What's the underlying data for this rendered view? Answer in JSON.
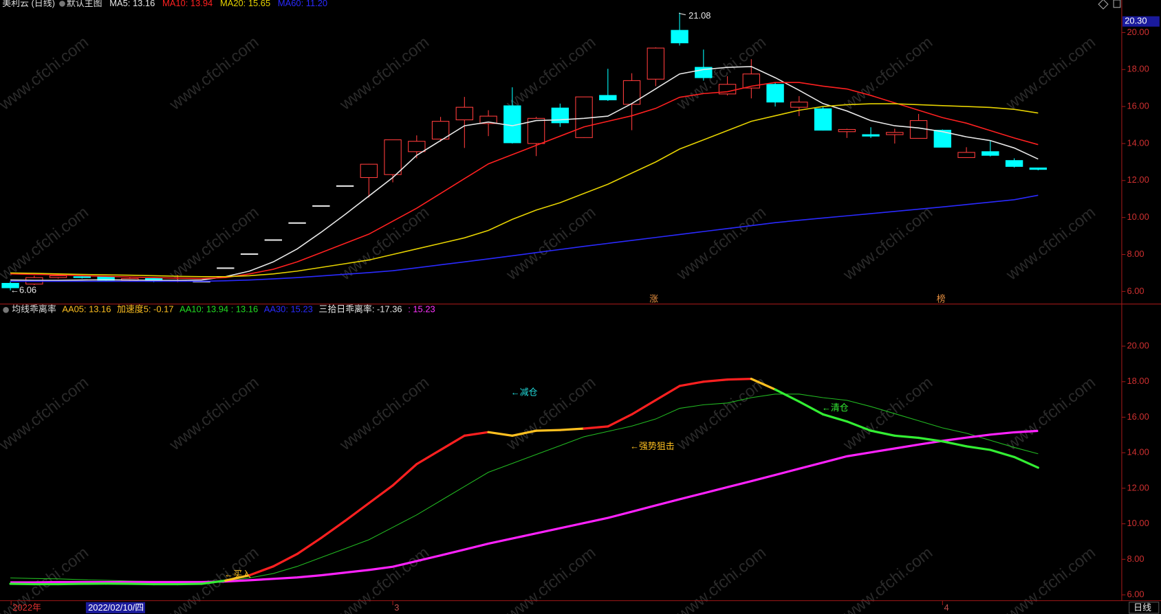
{
  "chart_data": [
    {
      "type": "candlestick",
      "title": "美利云 (日线)",
      "subtitle": "默认主图",
      "categories": [
        "2022年",
        null,
        null,
        null,
        null,
        null,
        null,
        null,
        null,
        null,
        null,
        null,
        null,
        null,
        null,
        null,
        "3",
        null,
        null,
        null,
        null,
        null,
        null,
        null,
        null,
        null,
        null,
        null,
        null,
        null,
        null,
        null,
        null,
        null,
        null,
        null,
        null,
        null,
        null,
        "4",
        null,
        null,
        null,
        null
      ],
      "open": [
        6.44,
        6.4,
        6.75,
        6.8,
        6.8,
        6.6,
        6.7,
        6.55,
        6.55,
        7.28,
        8.04,
        8.8,
        9.72,
        10.64,
        11.72,
        12.16,
        12.32,
        13.56,
        14.24,
        15.28,
        15.08,
        16.04,
        14.0,
        15.92,
        14.32,
        16.6,
        16.12,
        17.48,
        20.12,
        18.12,
        16.68,
        17.0,
        17.2,
        15.96,
        15.88,
        14.64,
        14.48,
        14.48,
        14.28,
        14.72,
        13.24,
        13.56,
        13.08,
        12.68
      ],
      "high": [
        6.55,
        6.85,
        6.9,
        6.85,
        6.85,
        6.75,
        6.75,
        6.9,
        6.55,
        7.28,
        8.04,
        8.8,
        9.72,
        10.64,
        11.72,
        12.9,
        14.2,
        14.44,
        15.44,
        16.52,
        15.8,
        17.04,
        15.44,
        16.16,
        16.52,
        18.04,
        17.8,
        19.2,
        21.08,
        19.08,
        17.64,
        18.56,
        17.3,
        16.56,
        16.0,
        14.8,
        14.88,
        14.8,
        15.6,
        14.76,
        13.8,
        14.16,
        13.2,
        12.7
      ],
      "low": [
        6.06,
        6.35,
        6.7,
        6.7,
        6.55,
        6.55,
        6.5,
        6.5,
        6.55,
        7.28,
        8.04,
        8.8,
        9.72,
        10.64,
        11.72,
        11.08,
        11.9,
        13.2,
        14.1,
        13.76,
        14.4,
        14.0,
        13.32,
        14.9,
        14.3,
        16.3,
        14.72,
        17.1,
        19.3,
        17.4,
        16.6,
        16.44,
        16.0,
        15.48,
        14.7,
        14.3,
        14.3,
        14.0,
        14.28,
        13.8,
        13.24,
        13.3,
        12.7,
        12.55
      ],
      "close": [
        6.2,
        6.75,
        6.85,
        6.75,
        6.6,
        6.7,
        6.55,
        6.6,
        6.55,
        7.28,
        8.04,
        8.8,
        9.72,
        10.64,
        11.72,
        12.88,
        14.2,
        14.12,
        15.2,
        15.96,
        15.48,
        14.04,
        15.36,
        15.12,
        16.52,
        16.36,
        17.4,
        19.16,
        19.44,
        17.56,
        17.2,
        17.76,
        16.24,
        16.24,
        14.72,
        14.76,
        14.4,
        14.6,
        15.24,
        13.8,
        13.52,
        13.36,
        12.76,
        12.6
      ],
      "up_color": "#ff3c3c",
      "down_color": "#00ffff",
      "flat_color": "#e0e0e0",
      "series": [
        {
          "name": "MA5: 13.16",
          "color": "#e8e8e8",
          "values": [
            6.62,
            6.6,
            6.6,
            6.62,
            6.63,
            6.62,
            6.6,
            6.6,
            6.62,
            6.8,
            7.1,
            7.6,
            8.3,
            9.2,
            10.16,
            11.16,
            12.16,
            13.36,
            14.16,
            14.96,
            15.16,
            14.96,
            15.24,
            15.28,
            15.36,
            15.48,
            16.16,
            16.96,
            17.76,
            18.0,
            18.12,
            18.16,
            17.56,
            16.88,
            16.16,
            15.76,
            15.24,
            14.96,
            14.84,
            14.64,
            14.36,
            14.16,
            13.76,
            13.16
          ]
        },
        {
          "name": "MA10: 13.94",
          "color": "#ff2020",
          "values": [
            6.95,
            6.92,
            6.9,
            6.85,
            6.82,
            6.78,
            6.75,
            6.72,
            6.7,
            6.75,
            6.95,
            7.2,
            7.6,
            8.1,
            8.6,
            9.1,
            9.8,
            10.5,
            11.3,
            12.1,
            12.9,
            13.4,
            13.9,
            14.4,
            14.9,
            15.2,
            15.5,
            15.9,
            16.5,
            16.7,
            16.8,
            17.1,
            17.3,
            17.3,
            17.1,
            16.95,
            16.6,
            16.2,
            15.8,
            15.4,
            15.1,
            14.7,
            14.3,
            13.94
          ]
        },
        {
          "name": "MA20: 15.65",
          "color": "#e6d200",
          "values": [
            7.0,
            6.98,
            6.95,
            6.92,
            6.9,
            6.88,
            6.85,
            6.82,
            6.8,
            6.8,
            6.85,
            6.95,
            7.1,
            7.3,
            7.5,
            7.7,
            8.0,
            8.3,
            8.6,
            8.9,
            9.3,
            9.9,
            10.4,
            10.8,
            11.3,
            11.8,
            12.4,
            13.0,
            13.7,
            14.2,
            14.7,
            15.2,
            15.5,
            15.8,
            16.0,
            16.1,
            16.15,
            16.15,
            16.1,
            16.05,
            16.0,
            15.95,
            15.85,
            15.65
          ]
        },
        {
          "name": "MA60: 11.20",
          "color": "#2a2aff",
          "values": [
            6.55,
            6.55,
            6.55,
            6.55,
            6.55,
            6.55,
            6.55,
            6.55,
            6.55,
            6.58,
            6.62,
            6.68,
            6.75,
            6.84,
            6.93,
            7.02,
            7.12,
            7.28,
            7.44,
            7.6,
            7.76,
            7.93,
            8.1,
            8.27,
            8.44,
            8.6,
            8.76,
            8.92,
            9.08,
            9.24,
            9.4,
            9.56,
            9.72,
            9.85,
            9.97,
            10.09,
            10.21,
            10.33,
            10.45,
            10.57,
            10.7,
            10.83,
            10.96,
            11.2
          ]
        }
      ],
      "ylim": [
        5.36,
        21.28
      ],
      "yticks": [
        {
          "value": 6,
          "label": "6.00"
        },
        {
          "value": 8,
          "label": "8.00"
        },
        {
          "value": 10,
          "label": "10.00"
        },
        {
          "value": 12,
          "label": "12.00"
        },
        {
          "value": 14,
          "label": "14.00"
        },
        {
          "value": 16,
          "label": "16.00"
        },
        {
          "value": 18,
          "label": "18.00"
        },
        {
          "value": 20,
          "label": "20.00"
        }
      ],
      "annotations": [
        "←6.06",
        "21.08",
        "涨",
        "榜"
      ],
      "price_label": "20.30"
    },
    {
      "type": "line",
      "title": "均线乖离率",
      "legend": [
        {
          "text": "AA05: 13.16",
          "color": "#ffc020"
        },
        {
          "text": "加速度5: -0.17",
          "color": "#ffc020"
        },
        {
          "text": "AA10: 13.94 : 13.16",
          "color": "#22dd22"
        },
        {
          "text": "AA30: 15.23",
          "color": "#2a2aff"
        },
        {
          "text": "三拾日乖离率: -17.36",
          "color": "#e8e8e8"
        },
        {
          "text": ": 15.23",
          "color": "#ff33ff"
        }
      ],
      "series": [
        {
          "color": "#22bb22",
          "width": 1,
          "values": [
            6.95,
            6.92,
            6.9,
            6.85,
            6.82,
            6.78,
            6.75,
            6.72,
            6.7,
            6.75,
            6.95,
            7.2,
            7.6,
            8.1,
            8.6,
            9.1,
            9.8,
            10.5,
            11.3,
            12.1,
            12.9,
            13.4,
            13.9,
            14.4,
            14.9,
            15.2,
            15.5,
            15.9,
            16.5,
            16.7,
            16.8,
            17.1,
            17.3,
            17.3,
            17.1,
            16.95,
            16.6,
            16.2,
            15.8,
            15.4,
            15.1,
            14.7,
            14.3,
            13.94
          ]
        },
        {
          "color": "#ff22ff",
          "width": 3,
          "values": [
            6.7,
            6.7,
            6.72,
            6.72,
            6.72,
            6.72,
            6.72,
            6.72,
            6.72,
            6.75,
            6.82,
            6.9,
            6.98,
            7.1,
            7.25,
            7.4,
            7.58,
            7.9,
            8.22,
            8.55,
            8.88,
            9.17,
            9.46,
            9.75,
            10.04,
            10.33,
            10.68,
            11.03,
            11.38,
            11.72,
            12.06,
            12.4,
            12.75,
            13.1,
            13.45,
            13.8,
            14.02,
            14.24,
            14.46,
            14.67,
            14.85,
            15.02,
            15.15,
            15.23
          ]
        },
        {
          "width": 3,
          "values": [
            6.62,
            6.6,
            6.6,
            6.62,
            6.63,
            6.62,
            6.6,
            6.6,
            6.62,
            6.8,
            7.1,
            7.6,
            8.3,
            9.2,
            10.16,
            11.16,
            12.16,
            13.36,
            14.16,
            14.96,
            15.16,
            14.96,
            15.24,
            15.28,
            15.36,
            15.48,
            16.16,
            16.96,
            17.76,
            18.0,
            18.12,
            18.16,
            17.56,
            16.88,
            16.16,
            15.76,
            15.24,
            14.96,
            14.84,
            14.64,
            14.36,
            14.16,
            13.76,
            13.16
          ],
          "segment_colors": [
            "#33ee33",
            "#33ee33",
            "#33ee33",
            "#33ee33",
            "#33ee33",
            "#33ee33",
            "#33ee33",
            "#33ee33",
            "#33ee33",
            "#ffc020",
            "#ff2020",
            "#ff2020",
            "#ff2020",
            "#ff2020",
            "#ff2020",
            "#ff2020",
            "#ff2020",
            "#ff2020",
            "#ff2020",
            "#ff2020",
            "#ffc020",
            "#ffc020",
            "#ffc020",
            "#ffc020",
            "#ff2020",
            "#ff2020",
            "#ff2020",
            "#ff2020",
            "#ff2020",
            "#ff2020",
            "#ff2020",
            "#ffc020",
            "#33ee33",
            "#33ee33",
            "#33ee33",
            "#33ee33",
            "#33ee33",
            "#33ee33",
            "#33ee33",
            "#33ee33",
            "#33ee33",
            "#33ee33",
            "#33ee33"
          ]
        }
      ],
      "ylim": [
        5.67,
        22.33
      ],
      "yticks": [
        {
          "value": 6,
          "label": "6.00"
        },
        {
          "value": 8,
          "label": "8.00"
        },
        {
          "value": 10,
          "label": "10.00"
        },
        {
          "value": 12,
          "label": "12.00"
        },
        {
          "value": 14,
          "label": "14.00"
        },
        {
          "value": 16,
          "label": "16.00"
        },
        {
          "value": 18,
          "label": "18.00"
        },
        {
          "value": 20,
          "label": "20.00"
        }
      ],
      "annotations": [
        {
          "text": "←买入",
          "color": "#ffc020"
        },
        {
          "text": "←减仓",
          "color": "#22dddd"
        },
        {
          "text": "←强势狙击",
          "color": "#ffc020"
        },
        {
          "text": "←清仓",
          "color": "#33ee33"
        }
      ]
    }
  ],
  "cursor_date": "2022/02/10/四",
  "period_label": "日线",
  "watermark": "www.cfchi.com"
}
